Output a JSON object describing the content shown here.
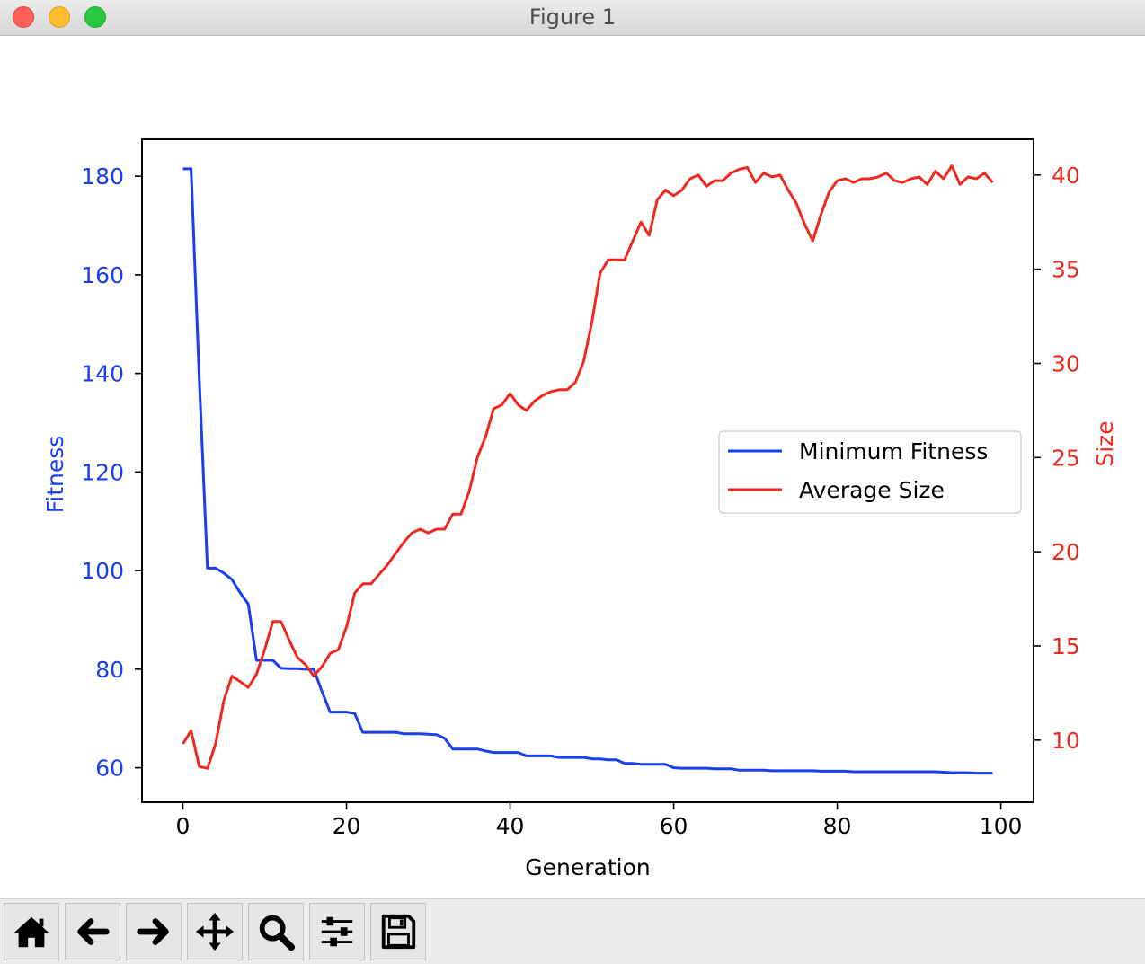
{
  "window": {
    "title": "Figure 1"
  },
  "toolbar": {
    "items": [
      {
        "name": "home-button",
        "icon": "home-icon"
      },
      {
        "name": "back-button",
        "icon": "arrow-left-icon"
      },
      {
        "name": "forward-button",
        "icon": "arrow-right-icon"
      },
      {
        "name": "pan-button",
        "icon": "move-icon"
      },
      {
        "name": "zoom-button",
        "icon": "magnifier-icon"
      },
      {
        "name": "configure-subplots-button",
        "icon": "sliders-icon"
      },
      {
        "name": "save-button",
        "icon": "floppy-disk-icon"
      }
    ]
  },
  "chart_data": {
    "type": "line",
    "title": "",
    "xlabel": "Generation",
    "xlim": [
      -5,
      104
    ],
    "xticks": [
      0,
      20,
      40,
      60,
      80,
      100
    ],
    "grid": false,
    "legend_position": "center-right",
    "left_axis": {
      "label": "Fitness",
      "color": "#1a3ff0",
      "ylim": [
        53,
        187.5
      ],
      "ticks": [
        60,
        80,
        100,
        120,
        140,
        160,
        180
      ]
    },
    "right_axis": {
      "label": "Size",
      "color": "#f0291f",
      "ylim": [
        6.7,
        41.9
      ],
      "ticks": [
        10,
        15,
        20,
        25,
        30,
        35,
        40
      ]
    },
    "series": [
      {
        "name": "Minimum Fitness",
        "axis": "left",
        "color": "#1a3ff0",
        "x": [
          0,
          1,
          2,
          3,
          4,
          5,
          6,
          7,
          8,
          9,
          10,
          11,
          12,
          13,
          14,
          15,
          16,
          17,
          18,
          19,
          20,
          21,
          22,
          23,
          24,
          25,
          26,
          27,
          28,
          29,
          30,
          31,
          32,
          33,
          34,
          35,
          36,
          37,
          38,
          39,
          40,
          41,
          42,
          43,
          44,
          45,
          46,
          47,
          48,
          49,
          50,
          51,
          52,
          53,
          54,
          55,
          56,
          57,
          58,
          59,
          60,
          61,
          62,
          63,
          64,
          65,
          66,
          67,
          68,
          69,
          70,
          71,
          72,
          73,
          74,
          75,
          76,
          77,
          78,
          79,
          80,
          81,
          82,
          83,
          84,
          85,
          86,
          87,
          88,
          89,
          90,
          91,
          92,
          93,
          94,
          95,
          96,
          97,
          98,
          99
        ],
        "values": [
          181.5,
          181.5,
          139,
          100.5,
          100.5,
          99.5,
          98.2,
          95.5,
          93.2,
          81.8,
          81.8,
          81.8,
          80.2,
          80.1,
          80.1,
          80,
          80,
          75.5,
          71.3,
          71.3,
          71.3,
          71,
          67.2,
          67.2,
          67.2,
          67.2,
          67.2,
          66.9,
          66.9,
          66.9,
          66.8,
          66.7,
          66,
          63.8,
          63.8,
          63.8,
          63.8,
          63.4,
          63.1,
          63.1,
          63.1,
          63.1,
          62.4,
          62.4,
          62.4,
          62.4,
          62.1,
          62.1,
          62.1,
          62.1,
          61.8,
          61.8,
          61.6,
          61.6,
          60.9,
          60.9,
          60.7,
          60.7,
          60.7,
          60.7,
          60.0,
          59.9,
          59.9,
          59.9,
          59.9,
          59.8,
          59.8,
          59.8,
          59.5,
          59.5,
          59.5,
          59.5,
          59.4,
          59.4,
          59.4,
          59.4,
          59.4,
          59.4,
          59.3,
          59.3,
          59.3,
          59.3,
          59.2,
          59.2,
          59.2,
          59.2,
          59.2,
          59.2,
          59.2,
          59.2,
          59.2,
          59.2,
          59.2,
          59.1,
          59.0,
          59.0,
          59.0,
          58.9,
          58.9,
          58.9
        ]
      },
      {
        "name": "Average Size",
        "axis": "right",
        "color": "#f0291f",
        "x": [
          0,
          1,
          2,
          3,
          4,
          5,
          6,
          7,
          8,
          9,
          10,
          11,
          12,
          13,
          14,
          15,
          16,
          17,
          18,
          19,
          20,
          21,
          22,
          23,
          24,
          25,
          26,
          27,
          28,
          29,
          30,
          31,
          32,
          33,
          34,
          35,
          36,
          37,
          38,
          39,
          40,
          41,
          42,
          43,
          44,
          45,
          46,
          47,
          48,
          49,
          50,
          51,
          52,
          53,
          54,
          55,
          56,
          57,
          58,
          59,
          60,
          61,
          62,
          63,
          64,
          65,
          66,
          67,
          68,
          69,
          70,
          71,
          72,
          73,
          74,
          75,
          76,
          77,
          78,
          79,
          80,
          81,
          82,
          83,
          84,
          85,
          86,
          87,
          88,
          89,
          90,
          91,
          92,
          93,
          94,
          95,
          96,
          97,
          98,
          99
        ],
        "values": [
          9.8,
          10.5,
          8.6,
          8.5,
          9.8,
          12.1,
          13.4,
          13.1,
          12.8,
          13.5,
          14.8,
          16.3,
          16.3,
          15.3,
          14.4,
          14.0,
          13.4,
          13.9,
          14.6,
          14.8,
          16.0,
          17.8,
          18.3,
          18.3,
          18.8,
          19.3,
          19.9,
          20.5,
          21.0,
          21.2,
          21.0,
          21.2,
          21.2,
          22.0,
          22.0,
          23.2,
          25.0,
          26.1,
          27.6,
          27.8,
          28.4,
          27.8,
          27.5,
          28.0,
          28.3,
          28.5,
          28.6,
          28.6,
          29.0,
          30.1,
          32.2,
          34.8,
          35.5,
          35.5,
          35.5,
          36.5,
          37.5,
          36.8,
          38.7,
          39.2,
          38.9,
          39.2,
          39.8,
          40.0,
          39.4,
          39.7,
          39.7,
          40.1,
          40.3,
          40.4,
          39.6,
          40.1,
          39.9,
          40.0,
          39.2,
          38.5,
          37.4,
          36.5,
          37.9,
          39.1,
          39.7,
          39.8,
          39.6,
          39.8,
          39.8,
          39.9,
          40.1,
          39.7,
          39.6,
          39.8,
          39.9,
          39.5,
          40.2,
          39.8,
          40.5,
          39.5,
          39.9,
          39.8,
          40.1,
          39.6
        ]
      }
    ]
  }
}
